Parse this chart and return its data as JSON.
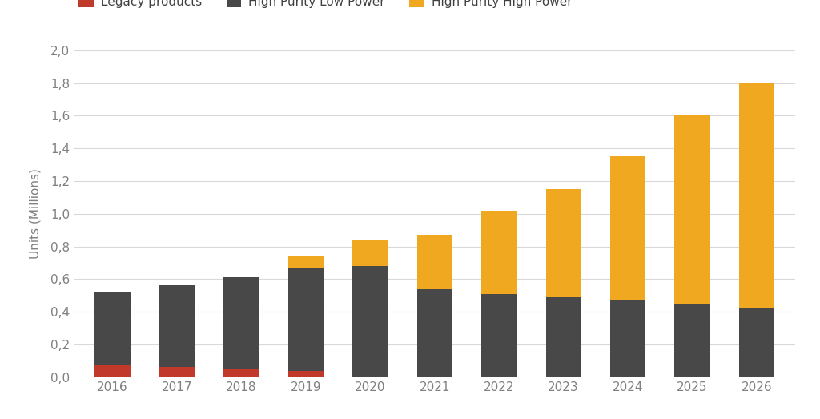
{
  "years": [
    2016,
    2017,
    2018,
    2019,
    2020,
    2021,
    2022,
    2023,
    2024,
    2025,
    2026
  ],
  "legacy": [
    0.07,
    0.06,
    0.05,
    0.04,
    0.0,
    0.0,
    0.0,
    0.0,
    0.0,
    0.0,
    0.0
  ],
  "high_purity_low_power": [
    0.45,
    0.5,
    0.56,
    0.63,
    0.68,
    0.54,
    0.51,
    0.49,
    0.47,
    0.45,
    0.42
  ],
  "high_purity_high_power": [
    0.0,
    0.0,
    0.0,
    0.07,
    0.16,
    0.33,
    0.51,
    0.66,
    0.88,
    1.15,
    1.38
  ],
  "legend_labels": [
    "Legacy products",
    "High Purity Low Power",
    "High Purity High Power"
  ],
  "ylabel": "Units (Millions)",
  "ylim": [
    0,
    2.0
  ],
  "yticks": [
    0.0,
    0.2,
    0.4,
    0.6,
    0.8,
    1.0,
    1.2,
    1.4,
    1.6,
    1.8,
    2.0
  ],
  "background_color": "#ffffff",
  "bar_color_legacy": "#c0392b",
  "bar_color_lp": "#484848",
  "bar_color_hp": "#f0a820",
  "grid_color": "#d9d9d9",
  "bar_width": 0.55,
  "tick_label_color": "#808080",
  "legend_text_color": "#404040",
  "ylabel_color": "#808080",
  "legend_fontsize": 11,
  "tick_fontsize": 11,
  "ylabel_fontsize": 11
}
